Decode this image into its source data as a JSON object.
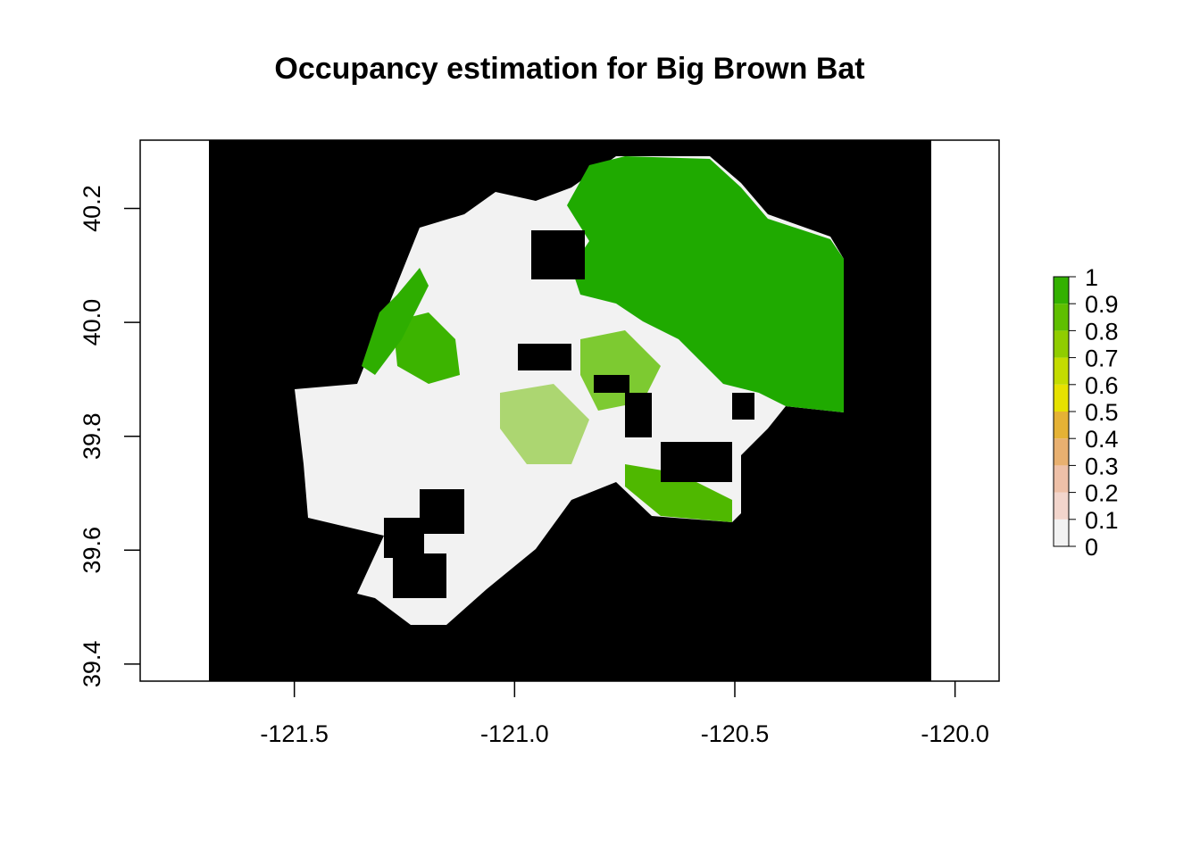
{
  "title": "Occupancy estimation for Big Brown Bat",
  "map": {
    "type": "raster",
    "x_ticks": [
      "-121.5",
      "-121.0",
      "-120.5",
      "-120.0"
    ],
    "y_ticks": [
      "39.4",
      "39.6",
      "39.8",
      "40.0",
      "40.2"
    ],
    "x_range": [
      -121.85,
      -119.9
    ],
    "y_range": [
      39.37,
      40.32
    ],
    "extent_lon": [
      -121.69,
      -120.04
    ],
    "nodata_color": "#000000",
    "legend": {
      "labels": [
        "0",
        "0.1",
        "0.2",
        "0.3",
        "0.4",
        "0.5",
        "0.6",
        "0.7",
        "0.8",
        "0.9",
        "1"
      ],
      "colors": [
        "#F2F2F2",
        "#F2D5CC",
        "#EEC0A8",
        "#E8B070",
        "#E5B235",
        "#E6E100",
        "#C4DC00",
        "#90CD00",
        "#5FBF00",
        "#33B100",
        "#00A600"
      ]
    }
  }
}
